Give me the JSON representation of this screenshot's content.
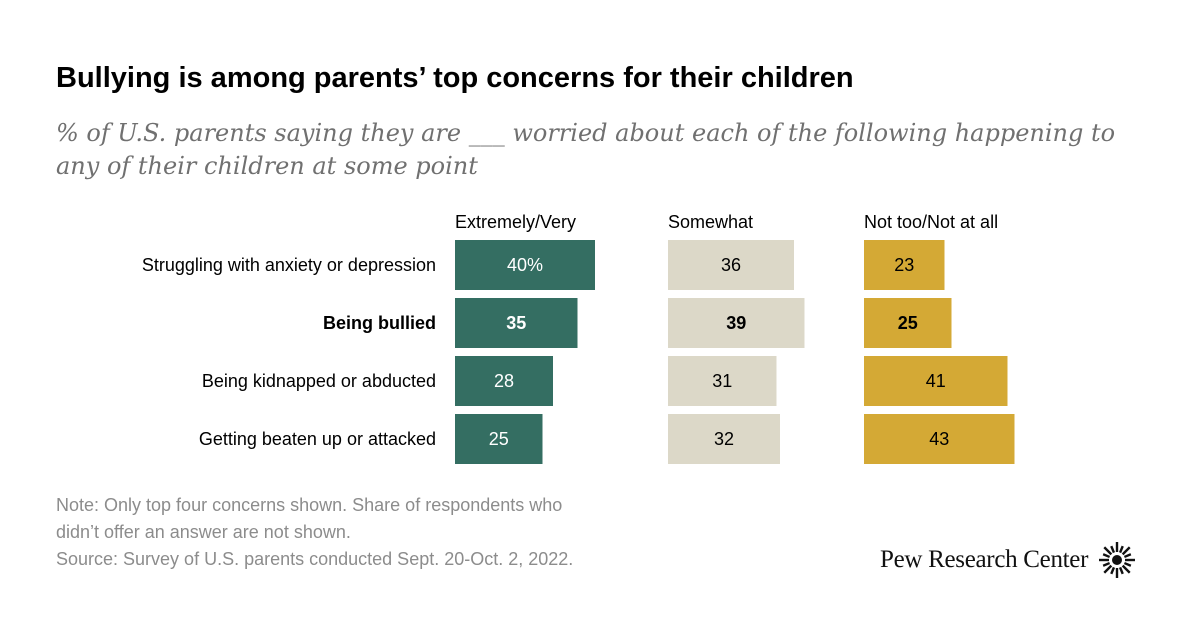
{
  "title": "Bullying is among parents’ top concerns for their children",
  "subtitle": "% of U.S. parents saying they are ___ worried about each of the following happening to any of their children at some point",
  "footer": {
    "note_line1": "Note: Only top four concerns shown. Share of respondents who",
    "note_line2": "didn’t offer an answer are not shown.",
    "source": "Source: Survey of U.S. parents conducted Sept. 20-Oct. 2, 2022."
  },
  "logo": {
    "text": "Pew Research Center",
    "icon": "pew-sunburst-icon"
  },
  "colors": {
    "extremely": "#346e62",
    "somewhat": "#dcd8c8",
    "not_too": "#d4a935",
    "text_dark": "#000000",
    "label_on_dark": "#ffffff"
  },
  "chart_data": {
    "type": "bar",
    "orientation": "horizontal",
    "layout": "side-by-side panels",
    "categories": [
      "Struggling with anxiety or depression",
      "Being bullied",
      "Being kidnapped or abducted",
      "Getting beaten up or attacked"
    ],
    "highlighted_category": "Being bullied",
    "series": [
      {
        "name": "Extremely/Very",
        "values": [
          40,
          35,
          28,
          25
        ],
        "labels": [
          "40%",
          "35",
          "28",
          "25"
        ]
      },
      {
        "name": "Somewhat",
        "values": [
          36,
          39,
          31,
          32
        ],
        "labels": [
          "36",
          "39",
          "31",
          "32"
        ]
      },
      {
        "name": "Not too/Not at all",
        "values": [
          23,
          25,
          41,
          43
        ],
        "labels": [
          "23",
          "25",
          "41",
          "43"
        ]
      }
    ],
    "units": "%",
    "grid": false
  }
}
